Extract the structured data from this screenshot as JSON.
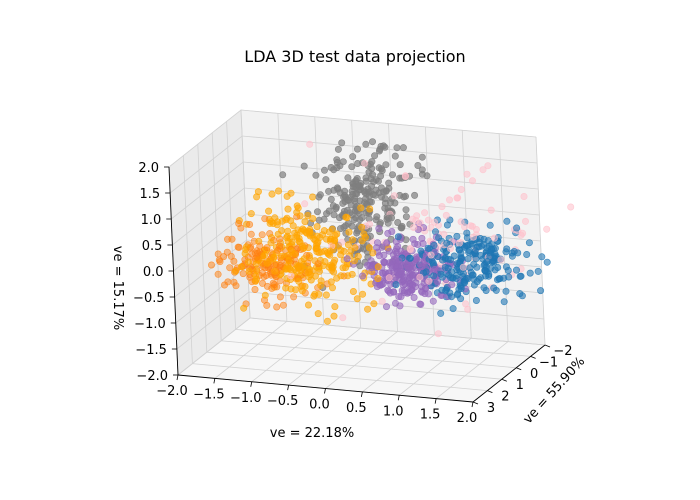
{
  "chart_data": {
    "type": "scatter",
    "projection": "3d",
    "title": "LDA 3D test data projection",
    "xlabel": "ve = 22.18%",
    "ylabel": "ve = 55.90%",
    "zlabel": "ve = 15.17%",
    "xlim": [
      -2,
      2
    ],
    "ylim": [
      -2,
      3
    ],
    "zlim": [
      -2,
      2
    ],
    "xticks": [
      "−2.0",
      "−1.5",
      "−1.0",
      "−0.5",
      "0.0",
      "0.5",
      "1.0",
      "1.5",
      "2.0"
    ],
    "yticks": [
      "−2",
      "−1",
      "0",
      "1",
      "2",
      "3"
    ],
    "zticks": [
      "−2.0",
      "−1.5",
      "−1.0",
      "−0.5",
      "0.0",
      "0.5",
      "1.0",
      "1.5",
      "2.0"
    ],
    "grid": true,
    "legend": false,
    "series": [
      {
        "color": "#ff7f0e",
        "alpha": 0.5,
        "count": 150,
        "center": [
          -1.3,
          0.2,
          -0.4
        ],
        "spread": [
          0.35,
          0.45,
          0.3
        ]
      },
      {
        "color": "#ffa500",
        "alpha": 0.6,
        "count": 260,
        "center": [
          -0.8,
          -0.2,
          -0.2
        ],
        "spread": [
          0.45,
          0.6,
          0.45
        ]
      },
      {
        "color": "#9467bd",
        "alpha": 0.6,
        "count": 260,
        "center": [
          0.55,
          -0.2,
          -0.35
        ],
        "spread": [
          0.3,
          0.35,
          0.3
        ]
      },
      {
        "color": "#7f7f7f",
        "alpha": 0.7,
        "count": 240,
        "center": [
          0.2,
          0.8,
          1.1
        ],
        "spread": [
          0.35,
          0.4,
          0.55
        ]
      },
      {
        "color": "#1f77b4",
        "alpha": 0.6,
        "count": 230,
        "center": [
          1.3,
          -0.9,
          -0.3
        ],
        "spread": [
          0.35,
          0.35,
          0.35
        ]
      },
      {
        "color": "#ffc0cb",
        "alpha": 0.55,
        "count": 90,
        "center": [
          0.9,
          -0.5,
          0.3
        ],
        "spread": [
          0.7,
          0.8,
          0.7
        ]
      }
    ]
  }
}
